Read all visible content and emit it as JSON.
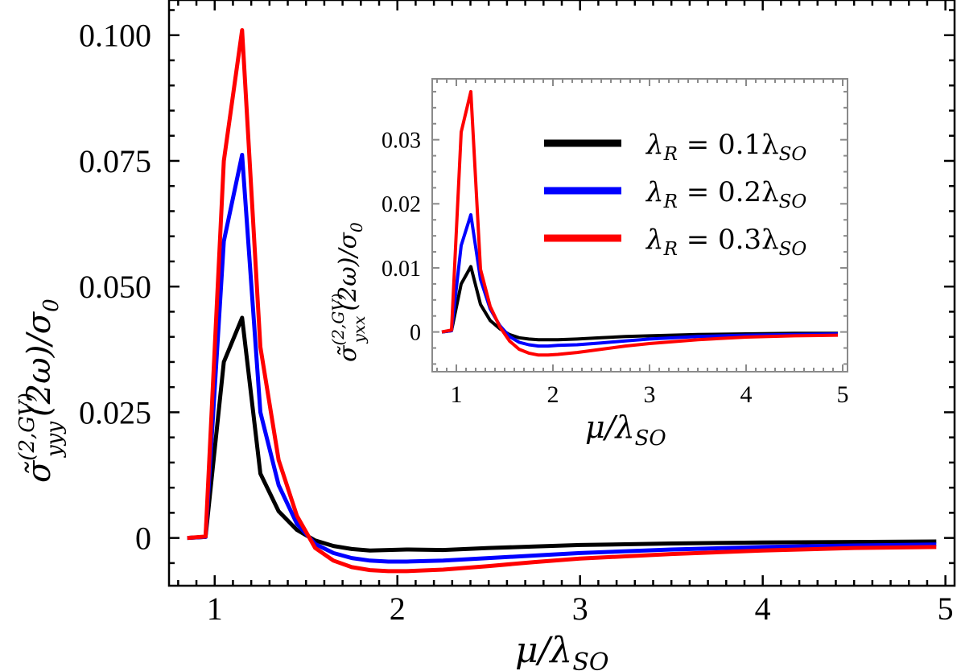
{
  "chart_data": [
    {
      "id": "main",
      "type": "line",
      "xlabel": "μ/λ_SO",
      "ylabel": "σ̃_yyy^(2,GV)(2ω)/σ_0",
      "xlim": [
        0.75,
        5.05
      ],
      "ylim": [
        -0.0095,
        0.107
      ],
      "xticks": [
        1,
        2,
        3,
        4,
        5
      ],
      "xtick_labels": [
        "1",
        "2",
        "3",
        "4",
        "5"
      ],
      "yticks": [
        0,
        0.025,
        0.05,
        0.075,
        0.1
      ],
      "ytick_labels": [
        "0",
        "0.025",
        "0.050",
        "0.075",
        "0.100"
      ],
      "x": [
        0.85,
        0.95,
        1.05,
        1.15,
        1.25,
        1.35,
        1.45,
        1.55,
        1.65,
        1.75,
        1.85,
        1.95,
        2.05,
        2.25,
        2.5,
        2.75,
        3.0,
        3.5,
        4.0,
        4.5,
        4.95
      ],
      "series": [
        {
          "name": "λ_R = 0.1λ_SO",
          "color": "#000000",
          "values": [
            0.0,
            0.0002,
            0.035,
            0.0438,
            0.0128,
            0.0053,
            0.0016,
            -0.0005,
            -0.0016,
            -0.0022,
            -0.0025,
            -0.0024,
            -0.0023,
            -0.0024,
            -0.002,
            -0.0017,
            -0.0014,
            -0.0011,
            -0.0009,
            -0.0008,
            -0.0007
          ]
        },
        {
          "name": "λ_R = 0.2λ_SO",
          "color": "#0000ff",
          "values": [
            0.0,
            0.0002,
            0.059,
            0.0762,
            0.025,
            0.0105,
            0.0028,
            -0.0012,
            -0.003,
            -0.004,
            -0.0045,
            -0.0047,
            -0.0047,
            -0.0045,
            -0.004,
            -0.0035,
            -0.003,
            -0.0023,
            -0.0018,
            -0.0015,
            -0.0013
          ]
        },
        {
          "name": "λ_R = 0.3λ_SO",
          "color": "#ff0000",
          "values": [
            0.0,
            0.0003,
            0.075,
            0.101,
            0.038,
            0.0155,
            0.0044,
            -0.002,
            -0.0045,
            -0.0058,
            -0.0064,
            -0.0066,
            -0.0066,
            -0.0063,
            -0.0056,
            -0.0048,
            -0.0041,
            -0.0032,
            -0.0025,
            -0.002,
            -0.0018
          ]
        }
      ]
    },
    {
      "id": "inset",
      "type": "line",
      "xlabel": "μ/λ_SO",
      "ylabel": "σ̃_yxx^(2,GV)(2ω)/σ_0",
      "xlim": [
        0.75,
        5.05
      ],
      "ylim": [
        -0.0062,
        0.0395
      ],
      "xticks": [
        1,
        2,
        3,
        4,
        5
      ],
      "xtick_labels": [
        "1",
        "2",
        "3",
        "4",
        "5"
      ],
      "yticks": [
        0,
        0.01,
        0.02,
        0.03
      ],
      "ytick_labels": [
        "0",
        "0.01",
        "0.02",
        "0.03"
      ],
      "legend_position": "top-right",
      "x": [
        0.85,
        0.95,
        1.05,
        1.15,
        1.25,
        1.35,
        1.45,
        1.55,
        1.65,
        1.75,
        1.85,
        1.95,
        2.05,
        2.25,
        2.5,
        2.75,
        3.0,
        3.5,
        4.0,
        4.5,
        4.95
      ],
      "series": [
        {
          "name": "λ_R = 0.1λ_SO",
          "color": "#000000",
          "values": [
            0.0,
            0.0002,
            0.0075,
            0.0102,
            0.0043,
            0.0018,
            0.0005,
            -0.0004,
            -0.0009,
            -0.0011,
            -0.0012,
            -0.0012,
            -0.0012,
            -0.0011,
            -0.0009,
            -0.0007,
            -0.0006,
            -0.0004,
            -0.0003,
            -0.0002,
            -0.0002
          ]
        },
        {
          "name": "λ_R = 0.2λ_SO",
          "color": "#0000ff",
          "values": [
            0.0,
            0.0002,
            0.0135,
            0.0183,
            0.0082,
            0.0036,
            0.001,
            -0.0007,
            -0.0016,
            -0.002,
            -0.0022,
            -0.0022,
            -0.0021,
            -0.002,
            -0.0017,
            -0.0014,
            -0.0011,
            -0.0007,
            -0.0005,
            -0.0004,
            -0.0003
          ]
        },
        {
          "name": "λ_R = 0.3λ_SO",
          "color": "#ff0000",
          "values": [
            0.0,
            0.0003,
            0.0312,
            0.0375,
            0.0098,
            0.004,
            0.0008,
            -0.0014,
            -0.0027,
            -0.0033,
            -0.0036,
            -0.0036,
            -0.0035,
            -0.0032,
            -0.0027,
            -0.0022,
            -0.0018,
            -0.0012,
            -0.0008,
            -0.0006,
            -0.0005
          ]
        }
      ]
    }
  ],
  "legend": {
    "entries": [
      {
        "label": "λ_R = 0.1λ_SO",
        "parts": [
          "λ",
          "R",
          " = 0.1λ",
          "SO"
        ],
        "color": "#000000"
      },
      {
        "label": "λ_R = 0.2λ_SO",
        "parts": [
          "λ",
          "R",
          " = 0.2λ",
          "SO"
        ],
        "color": "#0000ff"
      },
      {
        "label": "λ_R = 0.3λ_SO",
        "parts": [
          "λ",
          "R",
          " = 0.3λ",
          "SO"
        ],
        "color": "#ff0000"
      }
    ]
  },
  "labels": {
    "main_x": {
      "base": "μ/λ",
      "sub": "SO"
    },
    "inset_x": {
      "base": "μ/λ",
      "sub": "SO"
    },
    "main_y": {
      "sigma": "σ̃",
      "sup": "(2,GV)",
      "sub": "yyy",
      "rest": "(2ω)/σ",
      "rest_sub": "0"
    },
    "inset_y": {
      "sigma": "σ̃",
      "sup": "(2,GV)",
      "sub": "yxx",
      "rest": "(2ω)/σ",
      "rest_sub": "0"
    }
  }
}
